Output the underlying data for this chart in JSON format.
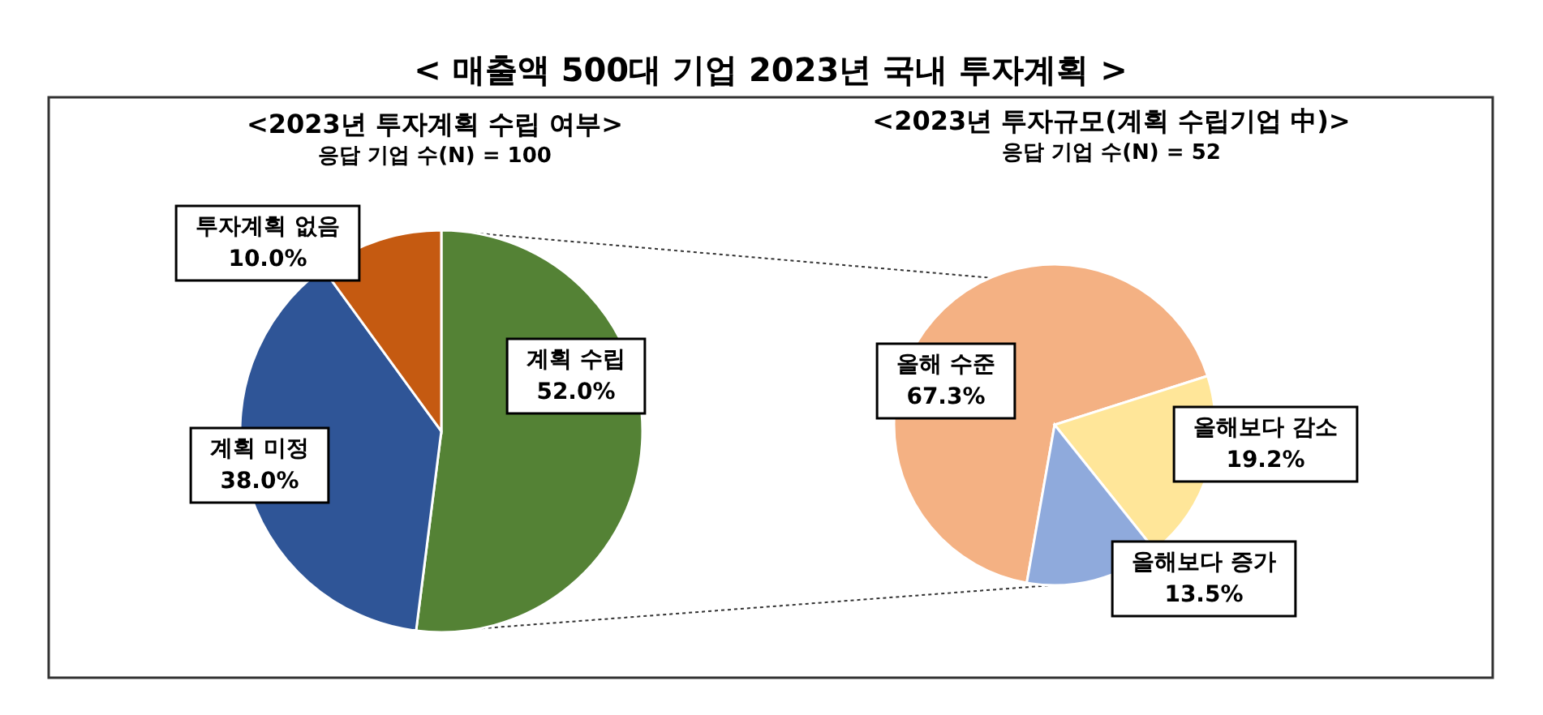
{
  "chart_data": [
    {
      "type": "other",
      "title": "< 매출액 500대 기업 2023년 국내 투자계획 >"
    },
    {
      "type": "pie",
      "title": "<2023년 투자계획 수립 여부>",
      "subtitle": "응답 기업 수(N) = 100",
      "categories": [
        "계획 수립",
        "계획 미정",
        "투자계획 없음"
      ],
      "values": [
        52.0,
        38.0,
        10.0
      ],
      "colors": [
        "#548235",
        "#2f5597",
        "#c55a11"
      ],
      "value_labels": [
        "52.0%",
        "38.0%",
        "10.0%"
      ]
    },
    {
      "type": "pie",
      "title": "<2023년 투자규모(계획 수립기업 中)>",
      "subtitle": "응답 기업 수(N) = 52",
      "categories": [
        "올해 수준",
        "올해보다 감소",
        "올해보다 증가"
      ],
      "values": [
        67.3,
        19.2,
        13.5
      ],
      "colors": [
        "#f4b183",
        "#ffe699",
        "#8faadc"
      ],
      "value_labels": [
        "67.3%",
        "19.2%",
        "13.5%"
      ]
    }
  ]
}
